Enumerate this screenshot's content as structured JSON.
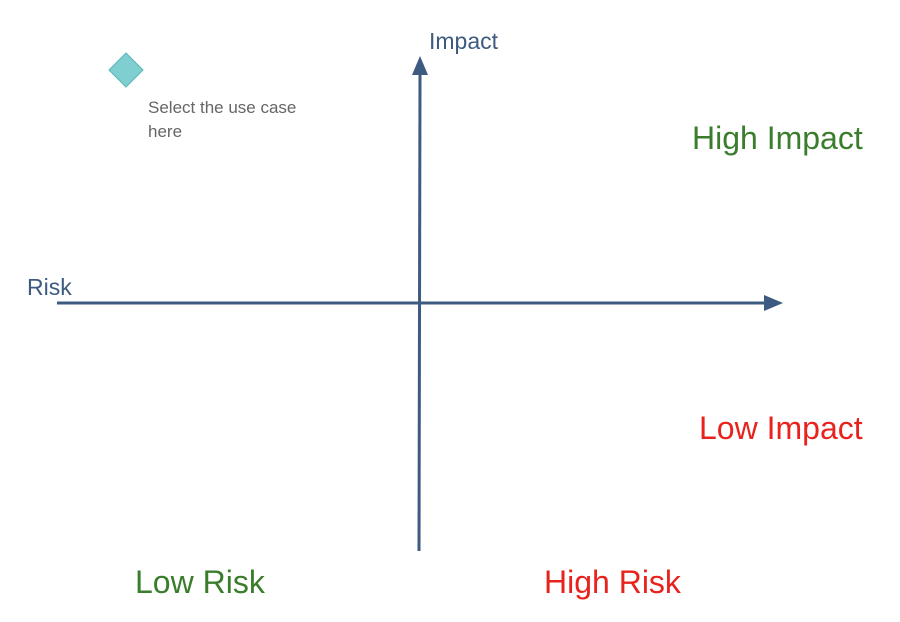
{
  "axes": {
    "y_label": "Impact",
    "x_label": "Risk",
    "color": "#3d5a80"
  },
  "quadrants": {
    "high_impact": "High Impact",
    "low_impact": "Low Impact",
    "low_risk": "Low Risk",
    "high_risk": "High Risk"
  },
  "colors": {
    "positive": "#3a7d2c",
    "negative": "#e8231e",
    "marker_fill": "#7fcfd0",
    "marker_stroke": "#5ab5b7"
  },
  "marker": {
    "hint": "Select the use case here",
    "icon": "diamond-icon"
  }
}
